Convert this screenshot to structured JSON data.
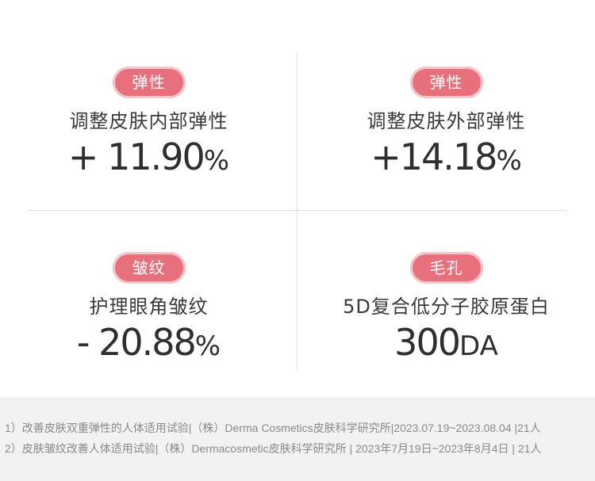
{
  "cells": [
    {
      "badge": "弹性",
      "label": "调整皮肤内部弹性",
      "value_num": "+ 11.90",
      "value_unit": "%"
    },
    {
      "badge": "弹性",
      "label": "调整皮肤外部弹性",
      "value_num": "+14.18",
      "value_unit": "%"
    },
    {
      "badge": "皱纹",
      "label": "护理眼角皱纹",
      "value_num": "- 20.88",
      "value_unit": "%"
    },
    {
      "badge": "毛孔",
      "label": "5D复合低分子胶原蛋白",
      "value_num": "300",
      "value_unit": "DA"
    }
  ],
  "footnotes": [
    "1）改善皮肤双重弹性的人体适用试验|（株）Derma Cosmetics皮肤科学研究所|2023.07.19~2023.08.04 |21人",
    "2）皮肤皱纹改善人体适用试验|（株）Dermacosmetic皮肤科学研究所 | 2023年7月19日~2023年8月4日 | 21人"
  ],
  "colors": {
    "badge_bg": "#e8707c",
    "badge_ring": "#f6c5ca",
    "footnote_bg": "#f2f2f2"
  }
}
